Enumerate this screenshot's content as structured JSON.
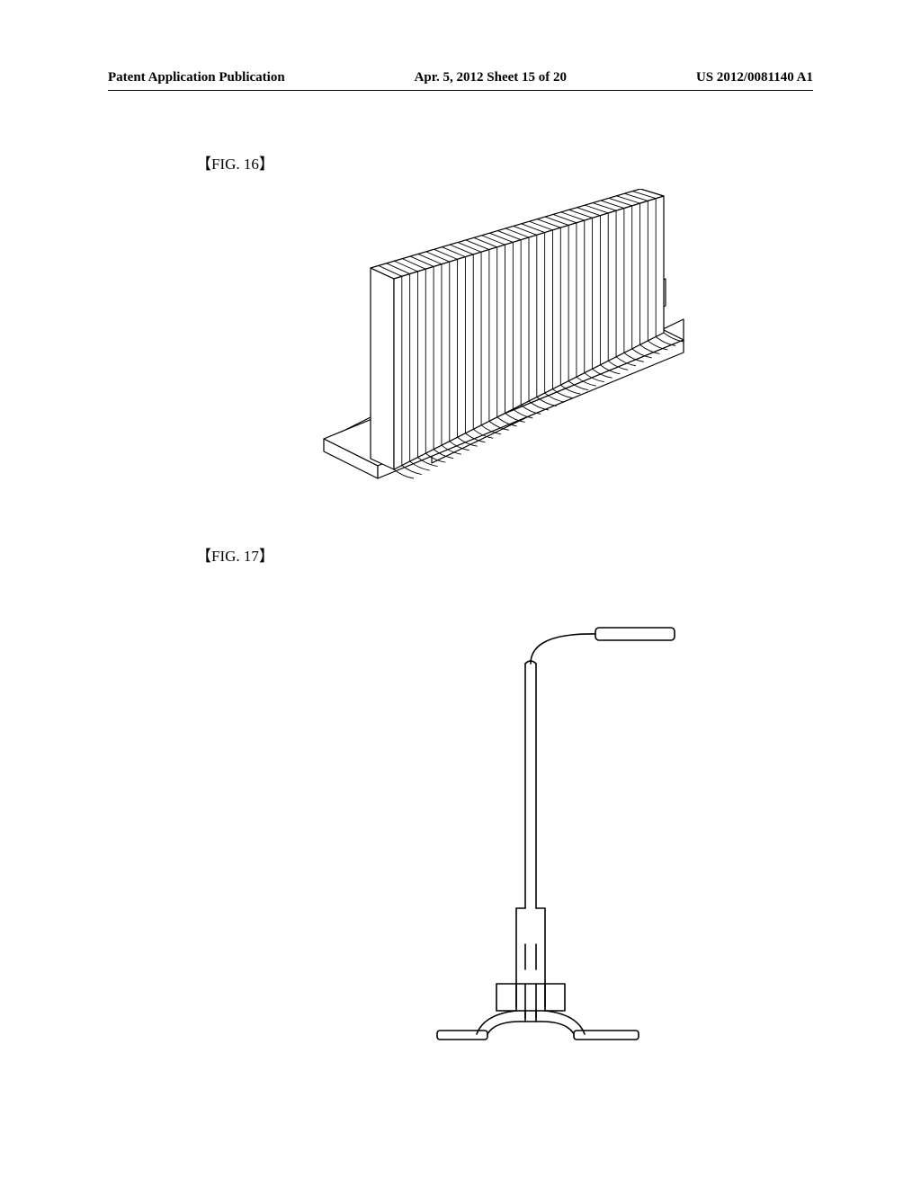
{
  "header": {
    "left": "Patent Application Publication",
    "center": "Apr. 5, 2012  Sheet 15 of 20",
    "right": "US 2012/0081140 A1"
  },
  "figures": {
    "fig16": {
      "label": "【FIG. 16】",
      "type": "diagram",
      "description": "heat-sink-isometric",
      "stroke_color": "#000000",
      "fill_color": "#ffffff",
      "stroke_width": 1.2,
      "fin_count": 34
    },
    "fig17": {
      "label": "【FIG. 17】",
      "type": "diagram",
      "description": "streetlight-pole-elevation",
      "stroke_color": "#000000",
      "fill_color": "#ffffff",
      "stroke_width": 1.6
    }
  }
}
